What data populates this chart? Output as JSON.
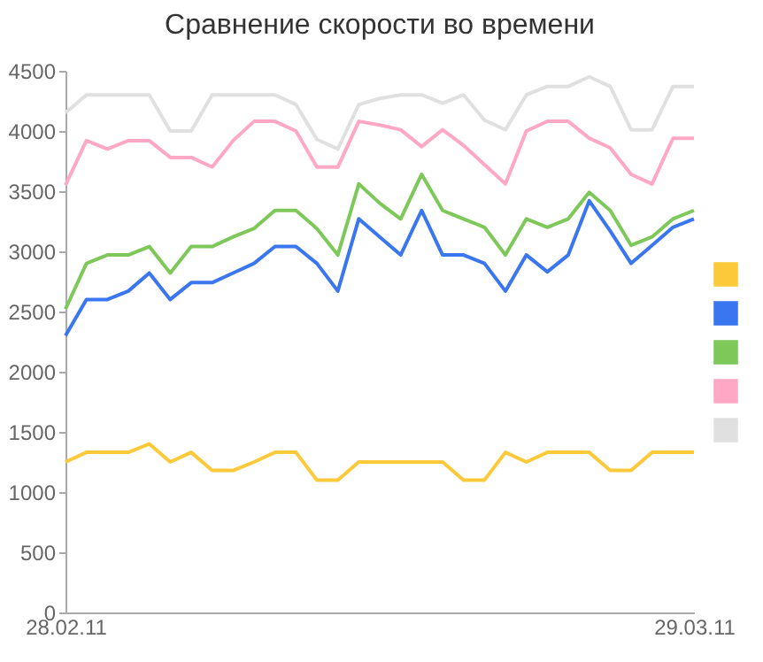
{
  "chart_data": {
    "type": "line",
    "title": "Сравнение скорости во времени",
    "categories": [
      "28.02.11",
      null,
      null,
      null,
      null,
      null,
      null,
      null,
      null,
      null,
      null,
      null,
      null,
      null,
      null,
      null,
      null,
      null,
      null,
      null,
      null,
      null,
      null,
      null,
      null,
      null,
      null,
      null,
      null,
      null,
      "29.03.11"
    ],
    "series": [
      {
        "color": "#fcc93a",
        "values": [
          1250,
          1330,
          1330,
          1330,
          1400,
          1250,
          1330,
          1180,
          1180,
          1250,
          1330,
          1330,
          1100,
          1100,
          1250,
          1250,
          1250,
          1250,
          1250,
          1100,
          1100,
          1330,
          1250,
          1330,
          1330,
          1330,
          1180,
          1180,
          1330,
          1330,
          1330
        ]
      },
      {
        "color": "#3a76f0",
        "values": [
          2300,
          2600,
          2600,
          2670,
          2820,
          2600,
          2740,
          2740,
          2820,
          2900,
          3040,
          3040,
          2900,
          2670,
          3270,
          3120,
          2970,
          3340,
          2970,
          2970,
          2900,
          2670,
          2970,
          2830,
          2970,
          3420,
          3170,
          2900,
          3050,
          3200,
          3270
        ]
      },
      {
        "color": "#7ec85a",
        "values": [
          2520,
          2900,
          2970,
          2970,
          3040,
          2820,
          3040,
          3040,
          3120,
          3190,
          3340,
          3340,
          3190,
          2970,
          3560,
          3400,
          3270,
          3640,
          3340,
          3270,
          3200,
          2970,
          3270,
          3200,
          3270,
          3490,
          3340,
          3050,
          3120,
          3270,
          3340
        ]
      },
      {
        "color": "#ffa8c5",
        "values": [
          3550,
          3920,
          3850,
          3920,
          3920,
          3780,
          3780,
          3700,
          3920,
          4080,
          4080,
          4000,
          3700,
          3700,
          4080,
          4050,
          4010,
          3870,
          4010,
          3880,
          3720,
          3560,
          4000,
          4080,
          4080,
          3940,
          3860,
          3640,
          3560,
          3940,
          3940
        ]
      },
      {
        "color": "#e0e0e0",
        "values": [
          4150,
          4300,
          4300,
          4300,
          4300,
          4000,
          4000,
          4300,
          4300,
          4300,
          4300,
          4220,
          3930,
          3850,
          4220,
          4270,
          4300,
          4300,
          4230,
          4300,
          4090,
          4010,
          4300,
          4370,
          4370,
          4450,
          4370,
          4010,
          4010,
          4370,
          4370
        ]
      }
    ],
    "ylim": [
      0,
      4500
    ],
    "yticks": [
      0,
      500,
      1000,
      1500,
      2000,
      2500,
      3000,
      3500,
      4000,
      4500
    ],
    "grid": false
  }
}
